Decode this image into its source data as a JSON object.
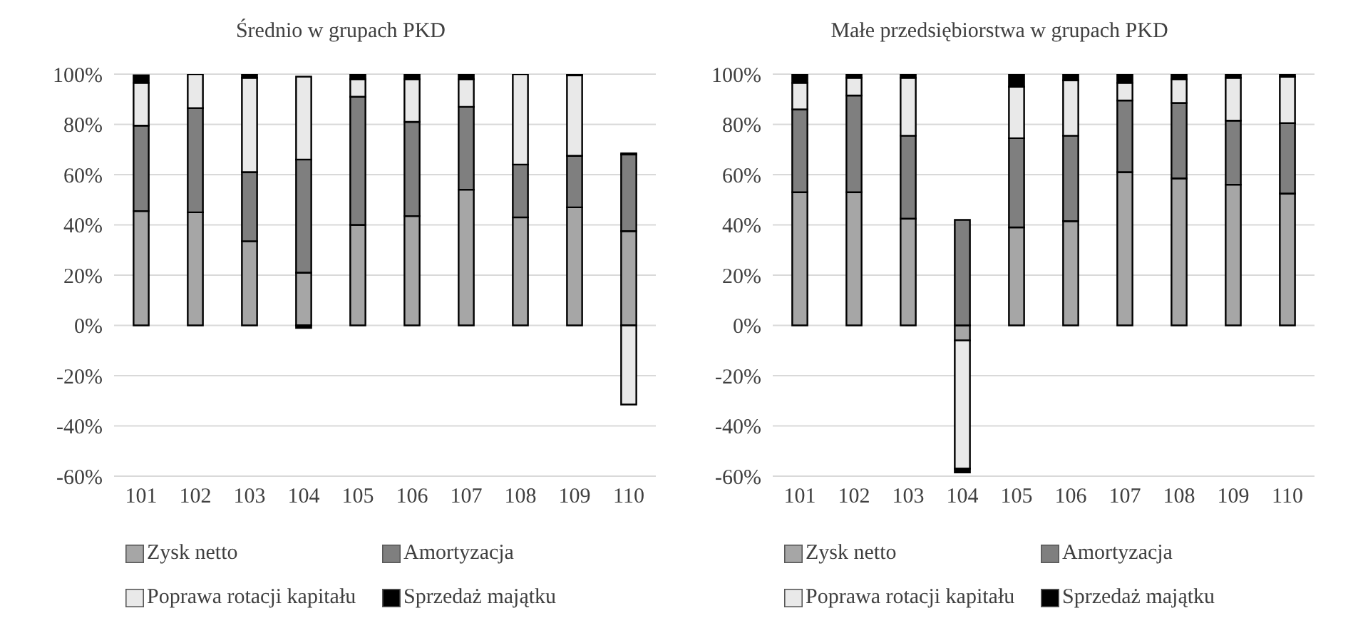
{
  "chart_data": [
    {
      "type": "bar",
      "title": "Średnio w grupach PKD",
      "stacked": true,
      "categories": [
        "101",
        "102",
        "103",
        "104",
        "105",
        "106",
        "107",
        "108",
        "109",
        "110"
      ],
      "series": [
        {
          "name": "Zysk netto",
          "color": "#a6a6a6",
          "values": [
            45.5,
            45,
            33.5,
            21,
            40,
            43.5,
            54,
            43,
            47,
            37.5
          ]
        },
        {
          "name": "Amortyzacja",
          "color": "#7f7f7f",
          "values": [
            34,
            41.5,
            27.5,
            45,
            51,
            37.5,
            33,
            21,
            20.5,
            30.5
          ]
        },
        {
          "name": "Poprawa rotacji kapitału",
          "color": "#e9e9e9",
          "values": [
            17,
            13.5,
            37.5,
            33,
            7,
            17,
            11,
            36,
            32,
            -31.5
          ]
        },
        {
          "name": "Sprzedaż majątku",
          "color": "#000000",
          "values": [
            3,
            0.5,
            1.5,
            -1,
            2,
            2,
            2,
            0,
            0.5,
            0.5
          ]
        }
      ],
      "ylim": [
        -60,
        100
      ],
      "yticks": [
        {
          "value": -60,
          "label": "-60%"
        },
        {
          "value": -40,
          "label": "-40%"
        },
        {
          "value": -20,
          "label": "-20%"
        },
        {
          "value": 0,
          "label": "0%"
        },
        {
          "value": 20,
          "label": "20%"
        },
        {
          "value": 40,
          "label": "40%"
        },
        {
          "value": 60,
          "label": "60%"
        },
        {
          "value": 80,
          "label": "80%"
        },
        {
          "value": 100,
          "label": "100%"
        }
      ],
      "grid": "y",
      "legend": "bottom"
    },
    {
      "type": "bar",
      "title": "Małe przedsiębiorstwa w grupach PKD",
      "stacked": true,
      "categories": [
        "101",
        "102",
        "103",
        "104",
        "105",
        "106",
        "107",
        "108",
        "109",
        "110"
      ],
      "series": [
        {
          "name": "Zysk netto",
          "color": "#a6a6a6",
          "values": [
            53,
            53,
            42.5,
            -6,
            39,
            41.5,
            61,
            58.5,
            56,
            52.5
          ]
        },
        {
          "name": "Amortyzacja",
          "color": "#7f7f7f",
          "values": [
            33,
            38.5,
            33,
            42,
            35.5,
            34,
            28.5,
            30,
            25.5,
            28
          ]
        },
        {
          "name": "Poprawa rotacji kapitału",
          "color": "#e9e9e9",
          "values": [
            10.5,
            7,
            23,
            -51,
            20.5,
            22,
            7,
            9.5,
            17,
            18.5
          ]
        },
        {
          "name": "Sprzedaż majątku",
          "color": "#000000",
          "values": [
            3.5,
            1.5,
            1.5,
            -1.5,
            5,
            2.5,
            3.5,
            2,
            1.5,
            1
          ]
        }
      ],
      "ylim": [
        -60,
        100
      ],
      "yticks": [
        {
          "value": -60,
          "label": "-60%"
        },
        {
          "value": -40,
          "label": "-40%"
        },
        {
          "value": -20,
          "label": "-20%"
        },
        {
          "value": 0,
          "label": "0%"
        },
        {
          "value": 20,
          "label": "20%"
        },
        {
          "value": 40,
          "label": "40%"
        },
        {
          "value": 60,
          "label": "60%"
        },
        {
          "value": 80,
          "label": "80%"
        },
        {
          "value": 100,
          "label": "100%"
        }
      ],
      "grid": "y",
      "legend": "bottom"
    }
  ]
}
